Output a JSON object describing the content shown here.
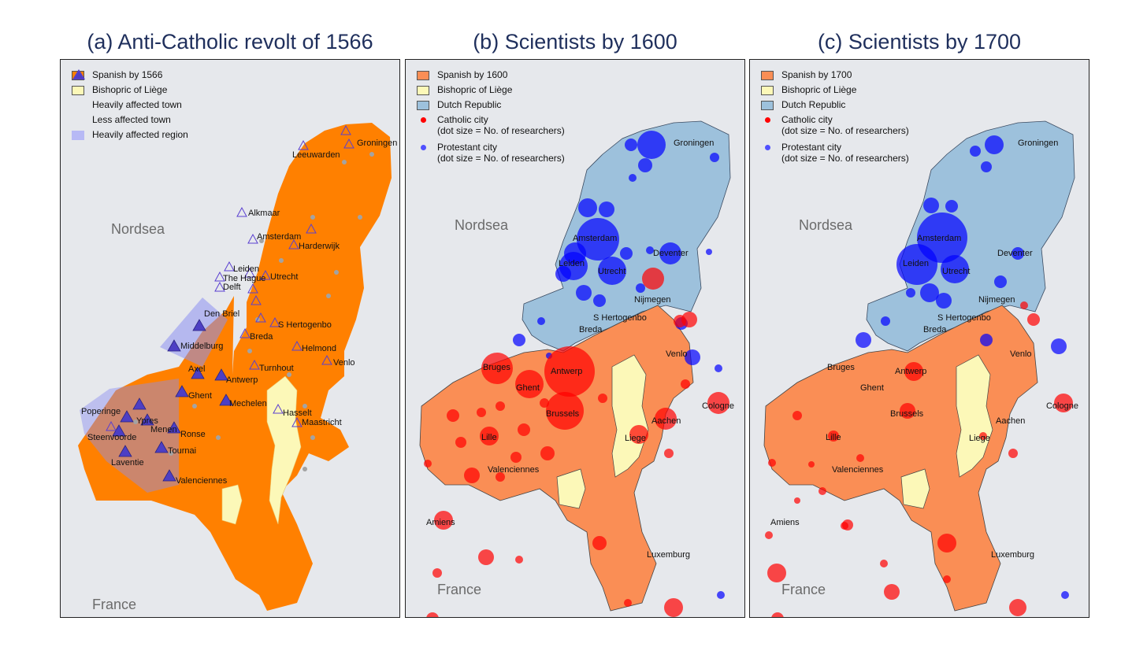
{
  "panels": [
    {
      "title": "(a) Anti-Catholic revolt of 1566",
      "legend": {
        "spanish": "Spanish by 1566",
        "liege": "Bishopric of Liège",
        "heavy_town": "Heavily affected town",
        "less_town": "Less affected town",
        "heavy_region": "Heavily affected region"
      },
      "sea_label": "Nordsea",
      "land_label": "France",
      "cities": [
        "Groningen",
        "Leeuwarden",
        "Alkmaar",
        "Amsterdam",
        "Harderwijk",
        "Leiden",
        "The Hague",
        "Utrecht",
        "Delft",
        "Den Briel",
        "S Hertogenbo",
        "Middelburg",
        "Breda",
        "Helmond",
        "Venlo",
        "Axel",
        "Turnhout",
        "Antwerp",
        "Ghent",
        "Mechelen",
        "Hasselt",
        "Maastricht",
        "Poperinge",
        "Ypres",
        "Menen",
        "Steenvoorde",
        "Ronse",
        "Tournai",
        "Laventie",
        "Valenciennes"
      ]
    },
    {
      "title": "(b) Scientists by 1600",
      "legend": {
        "spanish": "Spanish by 1600",
        "liege": "Bishopric of Liège",
        "dutch": "Dutch Republic",
        "catholic_1": "Catholic city",
        "catholic_2": "(dot size = No. of researchers)",
        "protestant_1": "Protestant city",
        "protestant_2": "(dot size = No. of researchers)"
      },
      "sea_label": "Nordsea",
      "land_label": "France",
      "cities": [
        "Groningen",
        "Amsterdam",
        "Leiden",
        "Utrecht",
        "Deventer",
        "Nijmegen",
        "S Hertogenbo",
        "Breda",
        "Bruges",
        "Antwerp",
        "Ghent",
        "Venlo",
        "Brussels",
        "Cologne",
        "Lille",
        "Aachen",
        "Liege",
        "Valenciennes",
        "Amiens",
        "Luxemburg"
      ]
    },
    {
      "title": "(c) Scientists by 1700",
      "legend": {
        "spanish": "Spanish by 1700",
        "liege": "Bishopric of Liège",
        "dutch": "Dutch Republic",
        "catholic_1": "Catholic city",
        "catholic_2": "(dot size = No. of researchers)",
        "protestant_1": "Protestant city",
        "protestant_2": "(dot size = No. of researchers)"
      },
      "sea_label": "Nordsea",
      "land_label": "France",
      "cities": [
        "Groningen",
        "Amsterdam",
        "Leiden",
        "Utrecht",
        "Deventer",
        "Nijmegen",
        "S Hertogenbo",
        "Breda",
        "Bruges",
        "Antwerp",
        "Ghent",
        "Venlo",
        "Brussels",
        "Cologne",
        "Lille",
        "Aachen",
        "Liege",
        "Valenciennes",
        "Amiens",
        "Luxemburg"
      ]
    }
  ],
  "colors": {
    "spanish_1566": "#ff8000",
    "spanish_later": "#fa8e55",
    "liege": "#fcf8b8",
    "dutch": "#9dc1dc",
    "sea": "#e6e8ec",
    "catholic_dot": "#ff0000",
    "protestant_dot": "#0000ff",
    "triangle": "#4d3fc4",
    "heavy_region": "#8c8ff2"
  }
}
